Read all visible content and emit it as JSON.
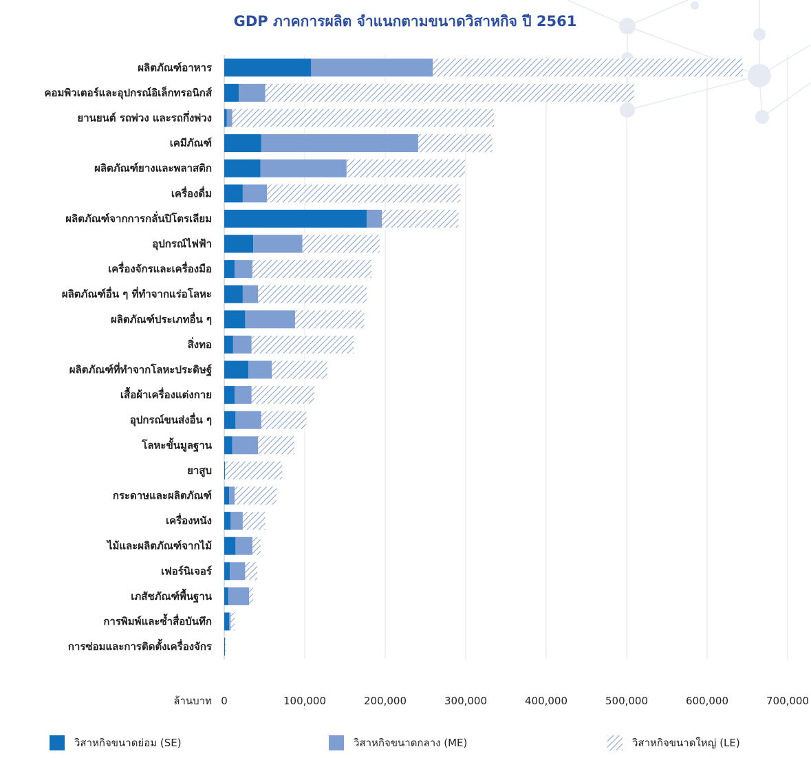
{
  "chart_data": {
    "type": "bar",
    "orientation": "horizontal",
    "stacked": true,
    "title": "GDP ภาคการผลิต จำแนกตามขนาดวิสาหกิจ ปี 2561",
    "xlabel": "ล้านบาท",
    "xlim": [
      0,
      700000
    ],
    "xticks": [
      0,
      100000,
      200000,
      300000,
      400000,
      500000,
      600000,
      700000
    ],
    "xtick_labels": [
      "0",
      "100,000",
      "200,000",
      "300,000",
      "400,000",
      "500,000",
      "600,000",
      "700,000"
    ],
    "grid": "vertical",
    "legend_position": "bottom",
    "categories": [
      "ผลิตภัณฑ์อาหาร",
      "คอมพิวเตอร์และอุปกรณ์อิเล็กทรอนิกส์",
      "ยานยนต์ รถพ่วง และรถกึ่งพ่วง",
      "เคมีภัณฑ์",
      "ผลิตภัณฑ์ยางและพลาสติก",
      "เครื่องดื่ม",
      "ผลิตภัณฑ์จากการกลั่นปิโตรเลียม",
      "อุปกรณ์ไฟฟ้า",
      "เครื่องจักรและเครื่องมือ",
      "ผลิตภัณฑ์อื่น ๆ ที่ทำจากแร่อโลหะ",
      "ผลิตภัณฑ์ประเภทอื่น ๆ",
      "สิ่งทอ",
      "ผลิตภัณฑ์ที่ทำจากโลหะประดิษฐ์",
      "เสื้อผ้าเครื่องแต่งกาย",
      "อุปกรณ์ขนส่งอื่น ๆ",
      "โลหะขั้นมูลฐาน",
      "ยาสูบ",
      "กระดาษและผลิตภัณฑ์",
      "เครื่องหนัง",
      "ไม้และผลิตภัณฑ์จากไม้",
      "เฟอร์นิเจอร์",
      "เภสัชภัณฑ์พื้นฐาน",
      "การพิมพ์และซ้ำสื่อบันทึก",
      "การซ่อมและการติดตั้งเครื่องจักร"
    ],
    "series": [
      {
        "name": "วิสาหกิจขนาดย่อม (SE)",
        "color": "#1070BC",
        "pattern": "solid",
        "values": [
          108000,
          18000,
          3000,
          46000,
          45000,
          23000,
          177000,
          36000,
          13000,
          23000,
          26000,
          11000,
          30000,
          13000,
          14000,
          10000,
          1000,
          6000,
          8000,
          14000,
          7000,
          5000,
          6000,
          1000
        ]
      },
      {
        "name": "วิสาหกิจขนาดกลาง (ME)",
        "color": "#7F9FD3",
        "pattern": "solid",
        "values": [
          151000,
          33000,
          7000,
          195000,
          107000,
          30000,
          19000,
          61000,
          22000,
          19000,
          62000,
          23000,
          29000,
          21000,
          32000,
          32000,
          0,
          7000,
          15000,
          21000,
          19000,
          26000,
          2000,
          0
        ]
      },
      {
        "name": "วิสาหกิจขนาดใหญ่ (LE)",
        "color": "#7F9FD3",
        "pattern": "hatched",
        "values": [
          385000,
          458000,
          325000,
          92000,
          147000,
          240000,
          95000,
          96000,
          148000,
          135000,
          86000,
          127000,
          69000,
          78000,
          56000,
          45000,
          71000,
          52000,
          28000,
          10000,
          15000,
          5000,
          5000,
          1000
        ]
      }
    ]
  }
}
